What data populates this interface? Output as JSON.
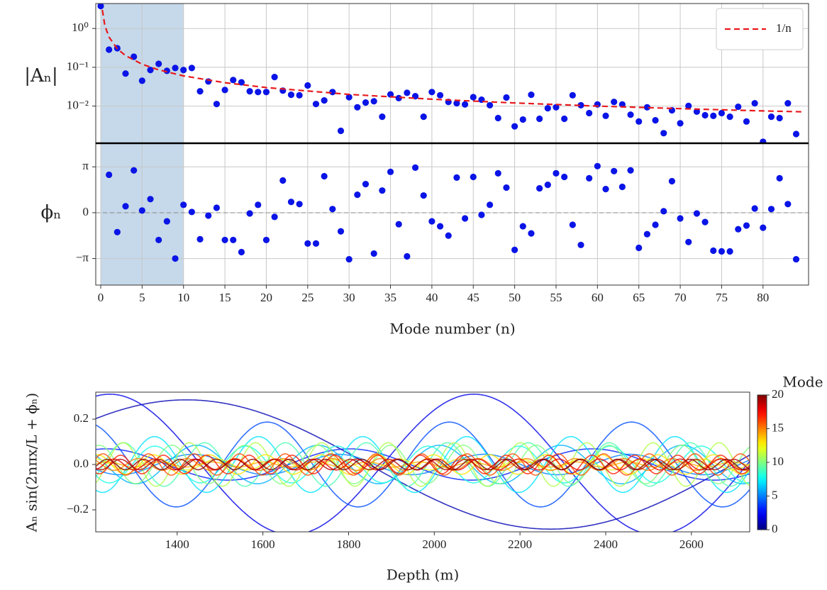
{
  "chart_data": [
    {
      "type": "scatter",
      "yscale": "log",
      "grid": true,
      "legend": "upper right",
      "span": [
        0,
        10
      ],
      "span_color": "#c5d9ea",
      "ylabel": "|Aₙ|",
      "xlim": [
        -0.6,
        85.5
      ],
      "xticks": [
        0,
        5,
        10,
        15,
        20,
        25,
        30,
        35,
        40,
        45,
        50,
        55,
        60,
        65,
        70,
        75,
        80
      ],
      "ylim": [
        0.0011,
        4.4
      ],
      "yticks": [
        {
          "value": 1,
          "label": "10⁰"
        },
        {
          "value": 0.1,
          "label": "10⁻¹"
        },
        {
          "value": 0.01,
          "label": "10⁻²"
        }
      ],
      "series": [
        {
          "color": "#0a14e6",
          "x": [
            0,
            1,
            2,
            3,
            4,
            5,
            6,
            7,
            8,
            9,
            10,
            11,
            12,
            13,
            14,
            15,
            16,
            17,
            18,
            19,
            20,
            21,
            22,
            23,
            24,
            25,
            26,
            27,
            28,
            29,
            30,
            31,
            32,
            33,
            34,
            35,
            36,
            37,
            38,
            39,
            40,
            41,
            42,
            43,
            44,
            45,
            46,
            47,
            48,
            49,
            50,
            51,
            52,
            53,
            54,
            55,
            56,
            57,
            58,
            59,
            60,
            61,
            62,
            63,
            64,
            65,
            66,
            67,
            68,
            69,
            70,
            71,
            72,
            73,
            74,
            75,
            76,
            77,
            78,
            79,
            80,
            81,
            82,
            83,
            84
          ],
          "values": [
            3.8,
            0.285,
            0.31,
            0.069,
            0.187,
            0.045,
            0.085,
            0.123,
            0.081,
            0.096,
            0.085,
            0.096,
            0.024,
            0.043,
            0.0113,
            0.026,
            0.047,
            0.041,
            0.024,
            0.023,
            0.023,
            0.056,
            0.025,
            0.0196,
            0.019,
            0.034,
            0.0113,
            0.014,
            0.023,
            0.0023,
            0.017,
            0.0093,
            0.0123,
            0.0133,
            0.0053,
            0.02,
            0.016,
            0.022,
            0.018,
            0.0053,
            0.023,
            0.019,
            0.0128,
            0.0118,
            0.011,
            0.017,
            0.0146,
            0.0105,
            0.0049,
            0.0166,
            0.003,
            0.0045,
            0.0196,
            0.0047,
            0.0088,
            0.0093,
            0.0047,
            0.019,
            0.0105,
            0.0066,
            0.011,
            0.0056,
            0.0128,
            0.011,
            0.006,
            0.004,
            0.0093,
            0.0043,
            0.002,
            0.0078,
            0.0036,
            0.0101,
            0.0072,
            0.0058,
            0.0056,
            0.0066,
            0.0053,
            0.0096,
            0.004,
            0.0118,
            0.0012,
            0.0053,
            0.0049,
            0.0118,
            0.0019
          ]
        },
        {
          "name": "1/n",
          "color": "#e8191c",
          "style": "dashed",
          "x": [
            0.2,
            0.5,
            1,
            2,
            3,
            5,
            7,
            10,
            15,
            20,
            30,
            40,
            50,
            60,
            70,
            80,
            85
          ],
          "values": [
            3.0,
            1.2,
            0.6,
            0.3,
            0.2,
            0.12,
            0.086,
            0.06,
            0.04,
            0.03,
            0.02,
            0.015,
            0.012,
            0.01,
            0.0086,
            0.0075,
            0.0071
          ]
        }
      ]
    },
    {
      "type": "scatter",
      "grid": true,
      "zero_line": true,
      "span": [
        0,
        10
      ],
      "span_color": "#c5d9ea",
      "color": "#0a14e6",
      "ylabel": "ϕₙ",
      "xlabel": "Mode number (n)",
      "xlim": [
        -0.6,
        85.5
      ],
      "xticks": [
        0,
        5,
        10,
        15,
        20,
        25,
        30,
        35,
        40,
        45,
        50,
        55,
        60,
        65,
        70,
        75,
        80
      ],
      "ylim": [
        -4.96,
        4.76
      ],
      "yticks": [
        {
          "value": 3.14159,
          "label": "π"
        },
        0,
        {
          "value": -3.14159,
          "label": "−π"
        }
      ],
      "x": [
        0,
        1,
        2,
        3,
        4,
        5,
        6,
        7,
        8,
        9,
        10,
        11,
        12,
        13,
        14,
        15,
        16,
        17,
        18,
        19,
        20,
        21,
        22,
        23,
        24,
        25,
        26,
        27,
        28,
        29,
        30,
        31,
        32,
        33,
        34,
        35,
        36,
        37,
        38,
        39,
        40,
        41,
        42,
        43,
        44,
        45,
        46,
        47,
        48,
        49,
        50,
        51,
        52,
        53,
        54,
        55,
        56,
        57,
        58,
        59,
        60,
        61,
        62,
        63,
        64,
        65,
        66,
        67,
        68,
        69,
        70,
        71,
        72,
        73,
        74,
        75,
        76,
        77,
        78,
        79,
        80,
        81,
        82,
        83,
        84
      ],
      "values": [
        null,
        2.6,
        -1.33,
        0.44,
        2.9,
        0.15,
        0.93,
        -1.87,
        -0.59,
        -3.14,
        0.54,
        0.05,
        -1.82,
        -0.2,
        0.34,
        -1.87,
        -1.87,
        -2.7,
        -0.05,
        0.54,
        -1.87,
        -0.29,
        2.21,
        0.74,
        0.59,
        -2.11,
        -2.11,
        2.5,
        0.25,
        -1.28,
        -3.19,
        1.23,
        1.96,
        -2.8,
        1.52,
        2.8,
        -0.79,
        -2.99,
        3.09,
        1.18,
        -0.59,
        -0.93,
        -1.57,
        2.41,
        -0.39,
        2.45,
        -0.15,
        0.54,
        2.7,
        1.72,
        -2.55,
        -0.93,
        -1.42,
        1.67,
        1.91,
        2.7,
        2.45,
        -0.83,
        -2.21,
        2.36,
        3.19,
        1.62,
        2.85,
        1.77,
        2.9,
        -2.41,
        -1.47,
        -0.83,
        0.1,
        2.16,
        -0.39,
        -2.01,
        -0.05,
        -0.64,
        -2.6,
        -2.65,
        -2.65,
        -1.13,
        -0.88,
        0.29,
        -1.03,
        0.25,
        2.36,
        0.59,
        -3.19
      ]
    },
    {
      "type": "line",
      "colormap": "jet",
      "wavelength": 1700,
      "ylabel": "Aₙ sin(2nπx/L + ϕₙ)",
      "xlabel": "Depth (m)",
      "xlim": [
        1210,
        2736
      ],
      "xticks": [
        1400,
        1600,
        1800,
        2000,
        2200,
        2400,
        2600
      ],
      "ylim": [
        -0.297,
        0.319
      ],
      "yticks": [
        {
          "value": -0.2,
          "label": "−0.2"
        },
        {
          "value": 0,
          "label": "0.0"
        },
        {
          "value": 0.2,
          "label": "0.2"
        }
      ],
      "colorbar": {
        "label": "Mode",
        "lim": [
          0,
          20
        ],
        "ticks": [
          0,
          5,
          10,
          15,
          20
        ]
      }
    }
  ]
}
